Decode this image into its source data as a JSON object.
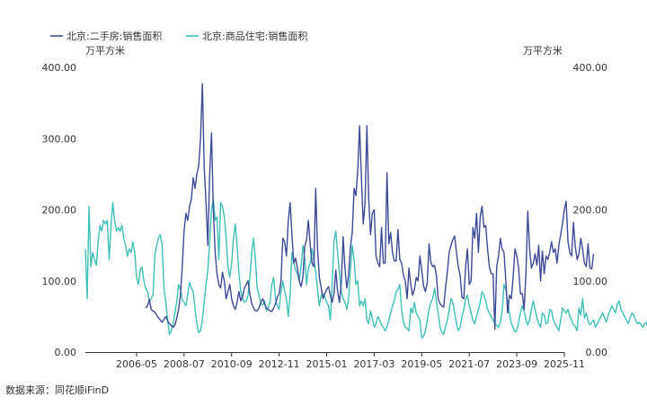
{
  "chart_data": {
    "type": "line",
    "legend_position": "top-left",
    "grid": false,
    "y_unit_left": "万平方米",
    "y_unit_right": "万平方米",
    "ylim": [
      0,
      400
    ],
    "y_ticks_left": [
      "400.00",
      "300.00",
      "200.00",
      "100.00",
      "0.00"
    ],
    "y_ticks_right": [
      "400.00",
      "200.00",
      "100.00",
      "0.00"
    ],
    "y_ticks_right_values": [
      400,
      200,
      100,
      0
    ],
    "y_ticks_values": [
      400,
      300,
      200,
      100,
      0
    ],
    "x_tick_labels": [
      "2006-05",
      "2008-07",
      "2010-09",
      "2012-11",
      "2015-01",
      "2017-03",
      "2019-05",
      "2021-07",
      "2023-09",
      "2025-11"
    ],
    "x_range": [
      "2004-01",
      "2025-11"
    ],
    "source": "数据来源：同花顺iFinD",
    "series": [
      {
        "name": "北京:二手房:销售面积",
        "color": "#3d4a96",
        "start": "2006-10",
        "values": [
          62,
          65,
          74,
          60,
          58,
          56,
          52,
          48,
          45,
          42,
          46,
          50,
          44,
          40,
          37,
          35,
          38,
          48,
          60,
          80,
          120,
          170,
          195,
          185,
          205,
          215,
          245,
          230,
          250,
          262,
          300,
          377,
          260,
          210,
          150,
          250,
          308,
          200,
          140,
          110,
          95,
          90,
          112,
          100,
          75,
          85,
          95,
          75,
          65,
          60,
          70,
          85,
          72,
          78,
          90,
          95,
          100,
          82,
          68,
          62,
          58,
          58,
          62,
          70,
          75,
          68,
          62,
          60,
          58,
          57,
          62,
          68,
          77,
          82,
          100,
          160,
          155,
          135,
          185,
          210,
          165,
          125,
          132,
          118,
          100,
          92,
          105,
          148,
          158,
          185,
          150,
          125,
          120,
          230,
          145,
          105,
          90,
          75,
          82,
          88,
          92,
          80,
          70,
          82,
          115,
          85,
          70,
          98,
          162,
          118,
          90,
          108,
          148,
          168,
          230,
          220,
          255,
          318,
          245,
          180,
          210,
          318,
          215,
          165,
          195,
          200,
          135,
          125,
          120,
          175,
          125,
          125,
          252,
          152,
          168,
          140,
          128,
          128,
          172,
          130,
          125,
          108,
          100,
          75,
          118,
          95,
          80,
          88,
          105,
          100,
          135,
          115,
          93,
          85,
          97,
          152,
          126,
          120,
          122,
          108,
          75,
          68,
          65,
          63,
          90,
          112,
          140,
          150,
          158,
          163,
          140,
          120,
          108,
          77,
          75,
          120,
          145,
          95,
          100,
          175,
          160,
          195,
          140,
          190,
          205,
          175,
          178,
          145,
          120,
          110,
          110,
          32,
          120,
          135,
          160,
          145,
          140,
          100,
          55,
          80,
          75,
          105,
          145,
          135,
          118,
          82,
          82,
          60,
          110,
          198,
          145,
          118,
          125,
          138,
          122,
          150,
          100,
          142,
          110,
          135,
          130,
          140,
          155,
          140,
          145,
          125,
          150,
          165,
          180,
          200,
          212,
          155,
          140,
          135,
          182,
          148,
          130,
          138,
          160,
          145,
          125,
          120,
          152,
          118,
          117,
          138
        ]
      },
      {
        "name": "北京:商品住宅:销售面积",
        "color": "#3fbfb8",
        "start": "2004-01",
        "values": [
          145,
          75,
          205,
          120,
          140,
          130,
          122,
          155,
          178,
          170,
          185,
          180,
          185,
          130,
          175,
          210,
          185,
          170,
          175,
          170,
          178,
          160,
          150,
          135,
          145,
          140,
          155,
          140,
          105,
          95,
          115,
          120,
          100,
          90,
          85,
          72,
          75,
          80,
          135,
          150,
          160,
          165,
          150,
          90,
          70,
          45,
          25,
          30,
          40,
          55,
          72,
          95,
          88,
          73,
          70,
          65,
          82,
          98,
          90,
          85,
          60,
          40,
          27,
          30,
          45,
          70,
          95,
          115,
          155,
          200,
          215,
          185,
          190,
          130,
          210,
          205,
          190,
          160,
          120,
          105,
          125,
          160,
          180,
          150,
          110,
          85,
          75,
          70,
          72,
          80,
          105,
          140,
          160,
          130,
          90,
          80,
          68,
          66,
          72,
          58,
          62,
          70,
          95,
          105,
          75,
          65,
          60,
          85,
          100,
          85,
          75,
          50,
          80,
          140,
          125,
          115,
          110,
          100,
          120,
          150,
          130,
          95,
          118,
          125,
          145,
          130,
          112,
          88,
          65,
          80,
          82,
          78,
          70,
          65,
          45,
          95,
          155,
          170,
          140,
          110,
          85,
          75,
          70,
          60,
          75,
          115,
          150,
          130,
          95,
          100,
          65,
          72,
          65,
          75,
          45,
          40,
          58,
          48,
          35,
          40,
          50,
          45,
          38,
          35,
          30,
          35,
          45,
          55,
          65,
          72,
          85,
          88,
          95,
          60,
          42,
          35,
          33,
          30,
          62,
          55,
          70,
          55,
          50,
          45,
          20,
          22,
          30,
          45,
          60,
          70,
          75,
          90,
          72,
          55,
          35,
          28,
          25,
          35,
          45,
          60,
          75,
          70,
          55,
          40,
          30,
          35,
          50,
          60,
          75,
          80,
          65,
          55,
          45,
          40,
          50,
          60,
          70,
          85,
          80,
          72,
          60,
          55,
          50,
          45,
          40,
          38,
          35,
          42,
          58,
          95,
          88,
          70,
          55,
          40,
          35,
          28,
          30,
          42,
          55,
          65,
          58,
          45,
          38,
          45,
          60,
          72,
          60,
          48,
          40,
          35,
          55,
          52,
          40,
          42,
          60,
          58,
          45,
          40,
          35,
          30,
          45,
          62,
          58,
          55,
          60,
          50,
          45,
          38,
          36,
          30,
          62,
          52,
          75,
          48,
          55,
          44,
          38,
          42,
          45,
          35,
          40,
          45,
          50,
          55,
          48,
          42,
          52,
          58,
          65,
          60,
          55,
          68,
          72,
          60,
          55,
          50,
          45,
          40,
          48,
          55,
          52,
          45,
          40,
          42,
          38,
          35,
          40,
          42,
          28,
          30
        ]
      }
    ]
  }
}
